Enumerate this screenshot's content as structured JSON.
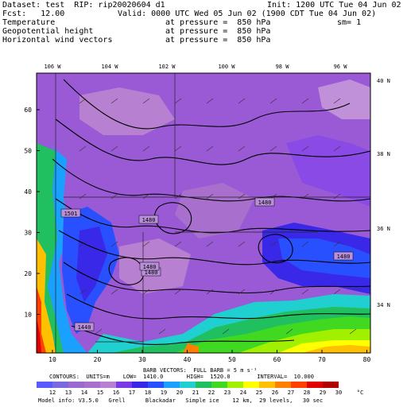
{
  "header": {
    "dataset": "Dataset: test  RIP: rip20020604 d1",
    "init": "Init: 1200 UTC Tue 04 Jun 02",
    "fcst": "Fcst:   12.00",
    "valid": "Valid: 0000 UTC Wed 05 Jun 02 (1900 CDT Tue 04 Jun 02)",
    "field1_name": "Temperature",
    "field1_level": "at pressure =  850 hPa",
    "field1_extra": "sm= 1",
    "field2_name": "Geopotential height",
    "field2_level": "at pressure =  850 hPa",
    "field3_name": "Horizontal wind vectors",
    "field3_level": "at pressure =  850 hPa"
  },
  "map": {
    "lon_labels": [
      "106 W",
      "104 W",
      "102 W",
      "100 W",
      "98 W",
      "96 W"
    ],
    "lat_labels": [
      "40 N",
      "38 N",
      "36 N",
      "34 N"
    ],
    "y_ticks": [
      "60",
      "50",
      "40",
      "30",
      "20",
      "10"
    ],
    "x_ticks": [
      "10",
      "20",
      "30",
      "40",
      "50",
      "60",
      "70",
      "80"
    ],
    "height_labels": [
      "1440",
      "1480",
      "1480",
      "1480",
      "1480",
      "1501",
      "1480"
    ],
    "contour_color": "#000000"
  },
  "legend": {
    "barb_line": "BARB VECTORS:  FULL BARB = 5 m s⁻¹",
    "contour_line": "CONTOURS:  UNITS=m    LOW=  1410.0       HIGH=  1520.0        INTERVAL=  10.000",
    "colorbar_values": [
      "12",
      "13",
      "14",
      "15",
      "16",
      "17",
      "18",
      "19",
      "20",
      "21",
      "22",
      "23",
      "24",
      "25",
      "26",
      "27",
      "28",
      "29",
      "30"
    ],
    "colorbar_unit": "°C",
    "colorbar_colors": [
      "#5a5aff",
      "#7a6ae0",
      "#9a6ad0",
      "#a870cc",
      "#b880d0",
      "#7a3ae8",
      "#3a28e8",
      "#2850ff",
      "#1aa0ff",
      "#20d0d0",
      "#20c060",
      "#40d820",
      "#a0f000",
      "#ffff00",
      "#ffc000",
      "#ff8000",
      "#ff4000",
      "#e00000",
      "#b00000",
      "#ffffff"
    ]
  },
  "footer": {
    "model_info": "Model info: V3.5.0   Grell      Blackadar   Simple ice    12 km,  29 levels,   30 sec"
  }
}
